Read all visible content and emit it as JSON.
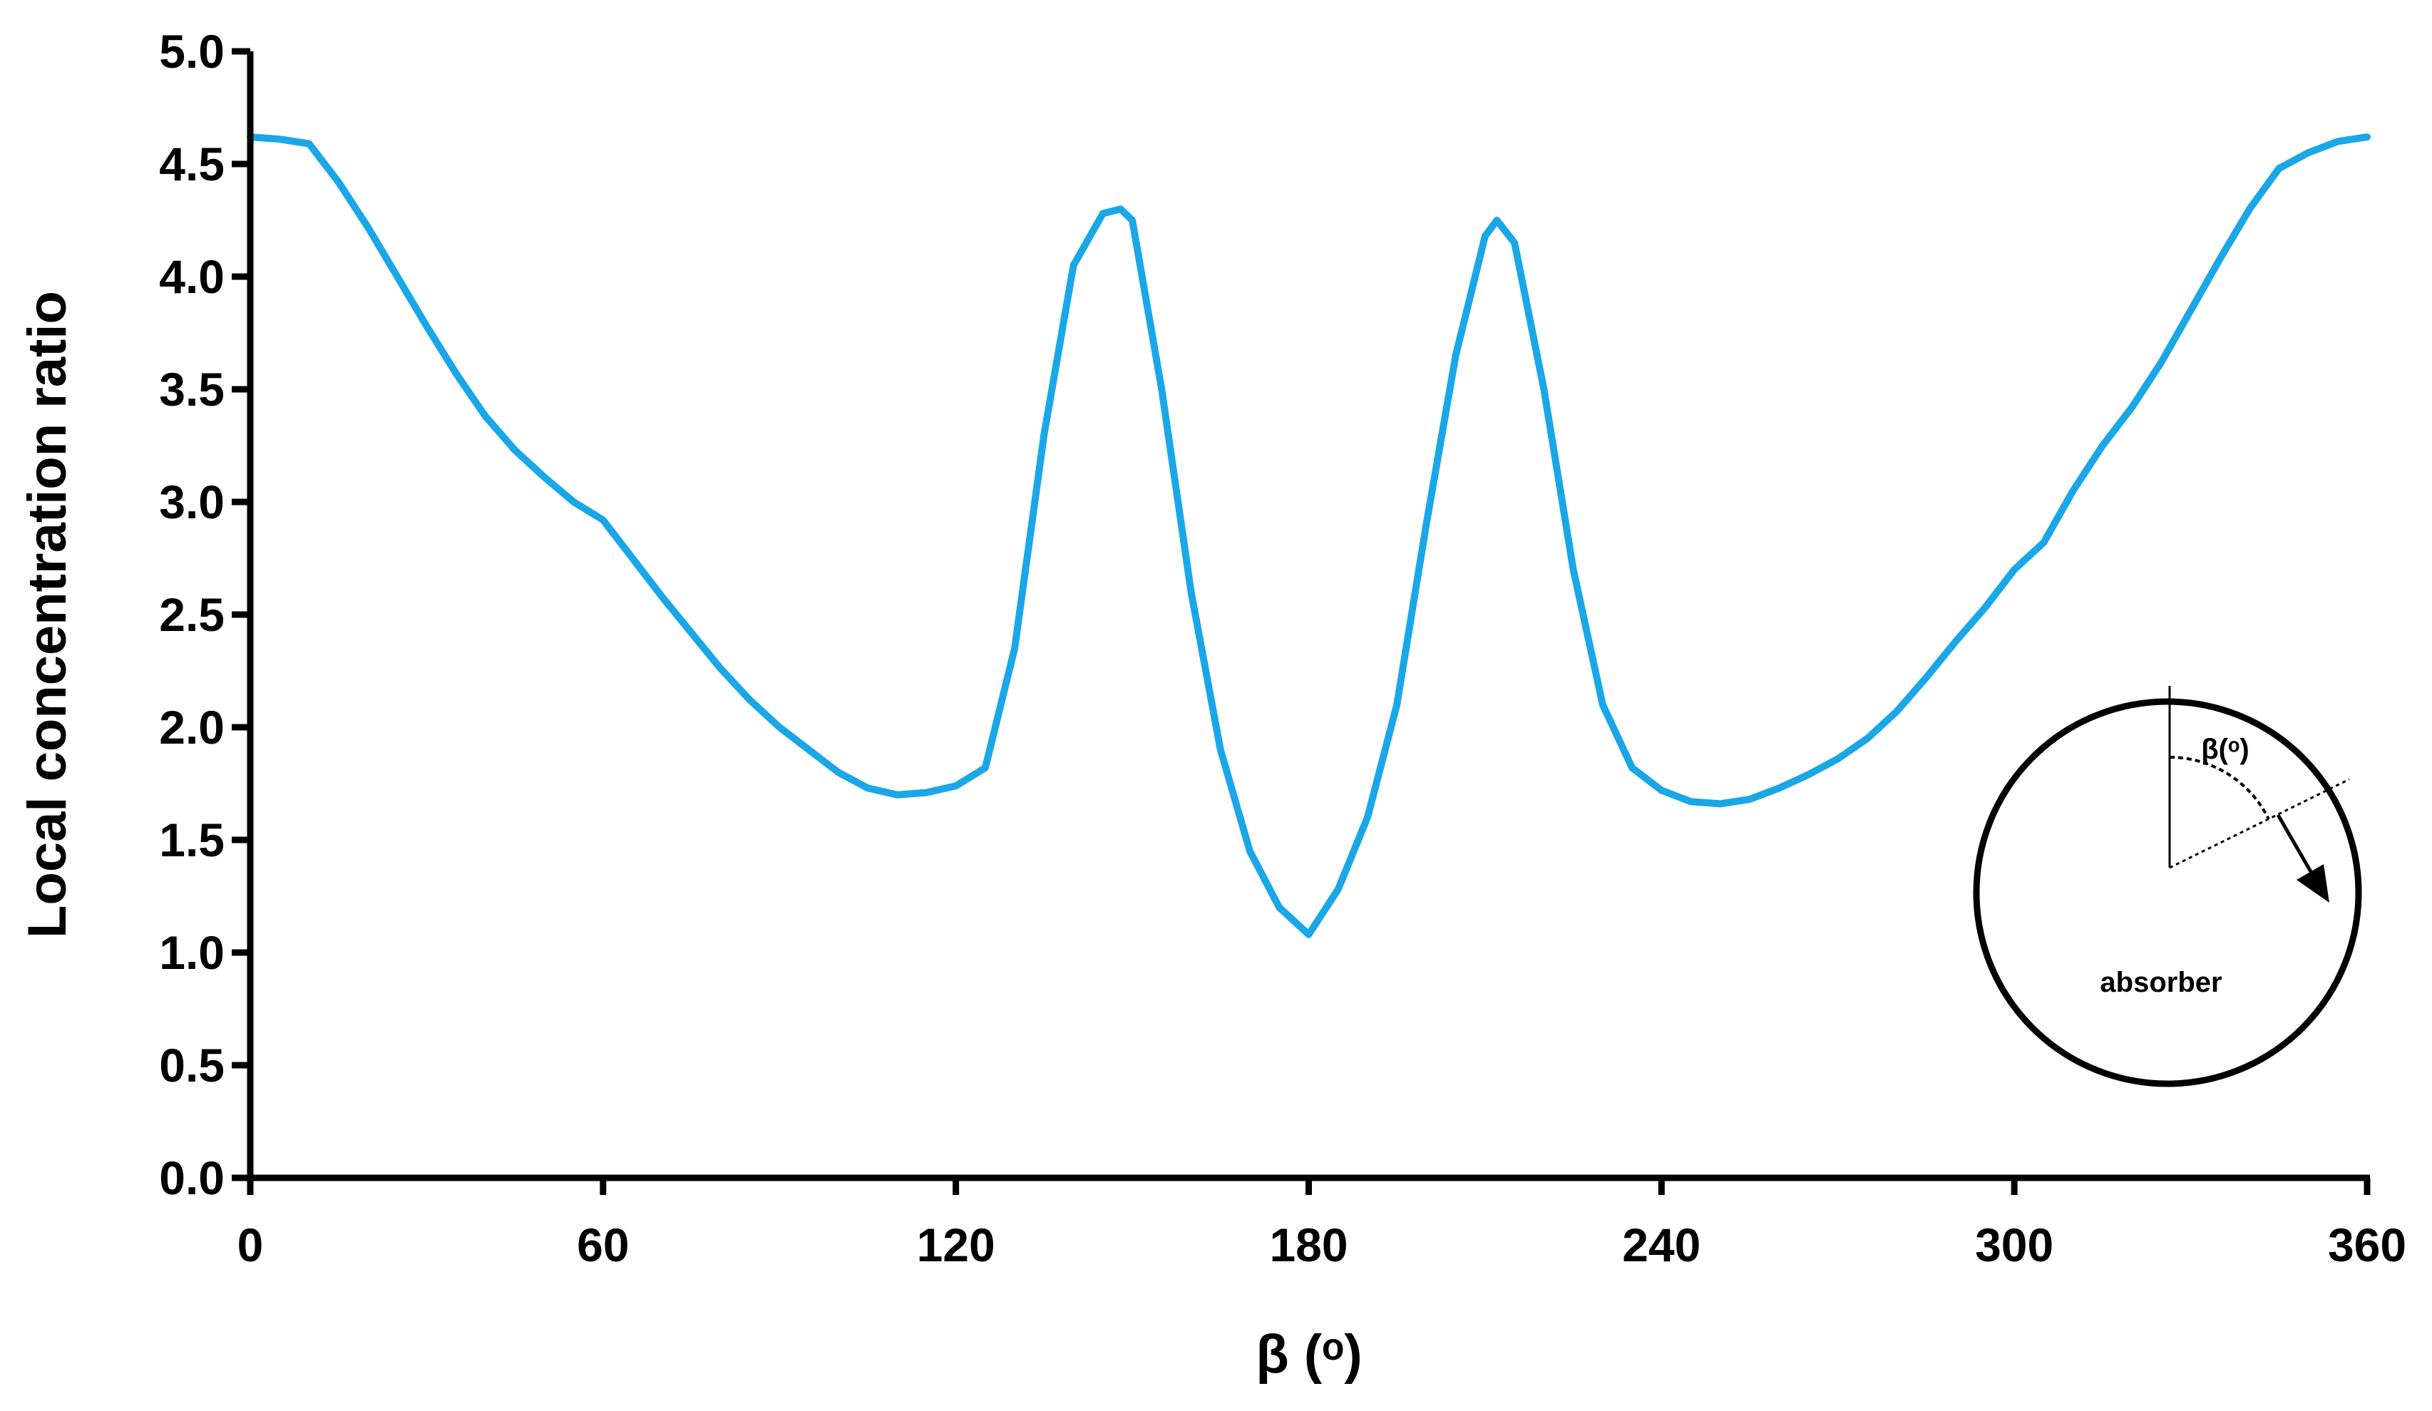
{
  "chart_data": {
    "type": "line",
    "title": "",
    "xlabel": "β (ᵒ)",
    "ylabel": "Local concentration ratio",
    "xlim": [
      0,
      360
    ],
    "ylim": [
      0,
      5
    ],
    "x_ticks": [
      "0",
      "60",
      "120",
      "180",
      "240",
      "300",
      "360"
    ],
    "y_ticks": [
      "0.0",
      "0.5",
      "1.0",
      "1.5",
      "2.0",
      "2.5",
      "3.0",
      "3.5",
      "4.0",
      "4.5",
      "5.0"
    ],
    "grid": false,
    "legend": "none",
    "series": [
      {
        "color": "#1aa7e8",
        "x": [
          0,
          5,
          10,
          15,
          20,
          25,
          30,
          35,
          40,
          45,
          50,
          55,
          60,
          65,
          70,
          75,
          80,
          85,
          90,
          95,
          100,
          105,
          110,
          115,
          120,
          125,
          130,
          135,
          140,
          145,
          148,
          150,
          155,
          160,
          165,
          170,
          175,
          180,
          185,
          190,
          195,
          200,
          205,
          210,
          212,
          215,
          220,
          225,
          230,
          235,
          240,
          245,
          250,
          255,
          260,
          265,
          270,
          275,
          280,
          285,
          290,
          295,
          300,
          305,
          310,
          315,
          320,
          325,
          330,
          335,
          340,
          345,
          350,
          355,
          360
        ],
        "y": [
          4.62,
          4.61,
          4.59,
          4.42,
          4.22,
          4.0,
          3.78,
          3.57,
          3.38,
          3.23,
          3.11,
          3.0,
          2.92,
          2.75,
          2.58,
          2.42,
          2.26,
          2.12,
          2.0,
          1.9,
          1.8,
          1.73,
          1.7,
          1.71,
          1.74,
          1.82,
          2.35,
          3.3,
          4.05,
          4.28,
          4.3,
          4.25,
          3.5,
          2.6,
          1.9,
          1.45,
          1.2,
          1.08,
          1.28,
          1.6,
          2.1,
          2.9,
          3.65,
          4.18,
          4.25,
          4.15,
          3.5,
          2.7,
          2.1,
          1.82,
          1.72,
          1.67,
          1.66,
          1.68,
          1.73,
          1.79,
          1.86,
          1.95,
          2.07,
          2.22,
          2.38,
          2.53,
          2.7,
          2.82,
          3.05,
          3.25,
          3.42,
          3.62,
          3.85,
          4.08,
          4.3,
          4.48,
          4.55,
          4.6,
          4.62
        ]
      }
    ],
    "inset": {
      "angle_label": "β(ᵒ)",
      "absorber_label": "absorber"
    }
  }
}
